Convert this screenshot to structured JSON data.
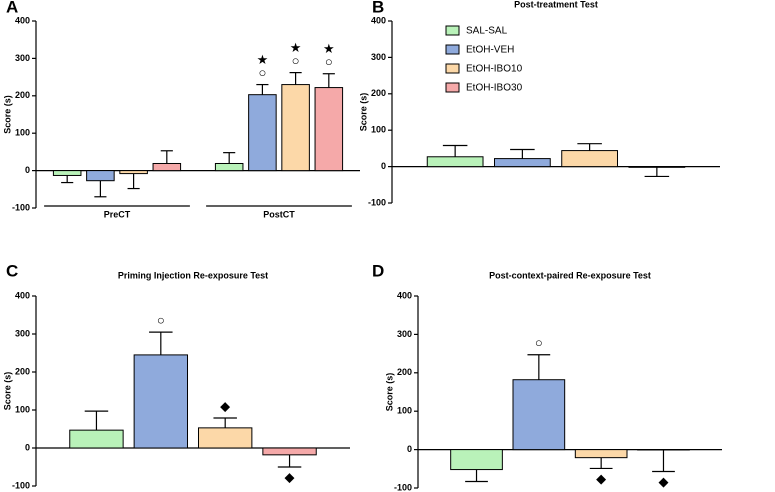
{
  "chart_data": [
    {
      "type": "bar",
      "panel": "A",
      "ylabel": "Score (s)",
      "categories": [
        "PreCT",
        "PostCT"
      ],
      "ylim": [
        -100,
        400
      ],
      "yticks": [
        -100,
        0,
        100,
        200,
        300,
        400
      ],
      "series": [
        {
          "color": "#b9f2b9",
          "values": [
            -13,
            19
          ],
          "errors": [
            19,
            29
          ],
          "annotations": [
            null,
            null
          ]
        },
        {
          "color": "#8faadc",
          "values": [
            -27,
            203
          ],
          "errors": [
            43,
            27
          ],
          "annotations": [
            null,
            [
              "★",
              "○"
            ]
          ]
        },
        {
          "color": "#fcd8a8",
          "values": [
            -8,
            230
          ],
          "errors": [
            40,
            32
          ],
          "annotations": [
            null,
            [
              "★",
              "○"
            ]
          ]
        },
        {
          "color": "#f5a9a9",
          "values": [
            19,
            222
          ],
          "errors": [
            34,
            37
          ],
          "annotations": [
            null,
            [
              "★",
              "○"
            ]
          ]
        }
      ]
    },
    {
      "type": "bar",
      "panel": "B",
      "title": "Post-treatment Test",
      "ylabel": "Score (s)",
      "categories": [
        null
      ],
      "ylim": [
        -100,
        400
      ],
      "yticks": [
        -100,
        0,
        100,
        200,
        300,
        400
      ],
      "legend": "upper left",
      "series": [
        {
          "name": "SAL-SAL",
          "color": "#b9f2b9",
          "values": [
            27
          ],
          "errors": [
            31
          ],
          "annotations": [
            null
          ]
        },
        {
          "name": "EtOH-VEH",
          "color": "#8faadc",
          "values": [
            22
          ],
          "errors": [
            25
          ],
          "annotations": [
            null
          ]
        },
        {
          "name": "EtOH-IBO10",
          "color": "#fcd8a8",
          "values": [
            44
          ],
          "errors": [
            19
          ],
          "annotations": [
            null
          ]
        },
        {
          "name": "EtOH-IBO30",
          "color": "#f5a9a9",
          "values": [
            -2
          ],
          "errors": [
            25
          ],
          "annotations": [
            null
          ]
        }
      ]
    },
    {
      "type": "bar",
      "panel": "C",
      "title": "Priming Injection Re-exposure Test",
      "ylabel": "Score (s)",
      "categories": [
        null
      ],
      "ylim": [
        -100,
        400
      ],
      "yticks": [
        -100,
        0,
        100,
        200,
        300,
        400
      ],
      "series": [
        {
          "color": "#b9f2b9",
          "values": [
            47
          ],
          "errors": [
            50
          ],
          "annotations": [
            null
          ]
        },
        {
          "color": "#8faadc",
          "values": [
            245
          ],
          "errors": [
            60
          ],
          "annotations": [
            [
              "○"
            ]
          ]
        },
        {
          "color": "#fcd8a8",
          "values": [
            53
          ],
          "errors": [
            26
          ],
          "annotations": [
            [
              "◆"
            ]
          ]
        },
        {
          "color": "#f5a9a9",
          "values": [
            -18
          ],
          "errors": [
            32
          ],
          "annotations": [
            [
              "◆"
            ]
          ]
        }
      ]
    },
    {
      "type": "bar",
      "panel": "D",
      "title": "Post-context-paired Re-exposure Test",
      "ylabel": "Score (s)",
      "categories": [
        null
      ],
      "ylim": [
        -100,
        400
      ],
      "yticks": [
        -100,
        0,
        100,
        200,
        300,
        400
      ],
      "series": [
        {
          "color": "#b9f2b9",
          "values": [
            -52
          ],
          "errors": [
            31
          ],
          "annotations": [
            null
          ]
        },
        {
          "color": "#8faadc",
          "values": [
            182
          ],
          "errors": [
            65
          ],
          "annotations": [
            [
              "○"
            ]
          ]
        },
        {
          "color": "#fcd8a8",
          "values": [
            -21
          ],
          "errors": [
            28
          ],
          "annotations": [
            [
              "◆"
            ]
          ]
        },
        {
          "color": "#f5a9a9",
          "values": [
            -1
          ],
          "errors": [
            56
          ],
          "annotations": [
            [
              "◆"
            ]
          ]
        }
      ]
    }
  ]
}
